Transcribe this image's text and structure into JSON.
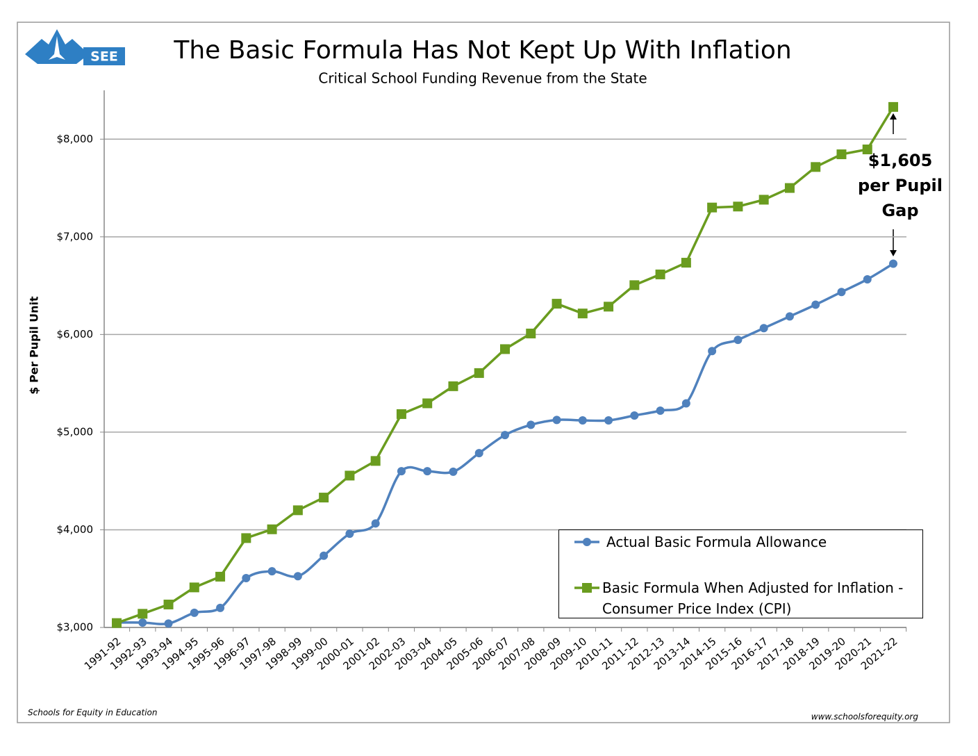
{
  "chart_data": {
    "type": "line",
    "title": "The Basic Formula Has Not Kept Up With Inflation",
    "subtitle": "Critical School Funding Revenue from the State",
    "y_label": "$ Per Pupil Unit",
    "logo_text": "SEE",
    "footer_left": "Schools for Equity in Education",
    "footer_right": "www.schoolsforequity.org",
    "annotation": [
      "$1,605",
      "per Pupil",
      "Gap"
    ],
    "categories": [
      "1991-92",
      "1992-93",
      "1993-94",
      "1994-95",
      "1995-96",
      "1996-97",
      "1997-98",
      "1998-99",
      "1999-00",
      "2000-01",
      "2001-02",
      "2002-03",
      "2003-04",
      "2004-05",
      "2005-06",
      "2006-07",
      "2007-08",
      "2008-09",
      "2009-10",
      "2010-11",
      "2011-12",
      "2012-13",
      "2013-14",
      "2014-15",
      "2015-16",
      "2016-17",
      "2017-18",
      "2018-19",
      "2019-20",
      "2020-21",
      "2021-22"
    ],
    "series": [
      {
        "name": "Actual Basic Formula Allowance",
        "color": "#4f81bd",
        "marker": "circle",
        "smooth": true,
        "values": [
          3050,
          3050,
          3040,
          3150,
          3200,
          3505,
          3575,
          3525,
          3735,
          3960,
          4065,
          4600,
          4600,
          4595,
          4785,
          4970,
          5075,
          5125,
          5120,
          5120,
          5170,
          5220,
          5295,
          5830,
          5945,
          6065,
          6185,
          6305,
          6435,
          6565,
          6725
        ]
      },
      {
        "name": "Basic Formula When Adjusted for Inflation - Consumer Price Index (CPI)",
        "color": "#6a9c1f",
        "marker": "square",
        "smooth": false,
        "values": [
          3045,
          3140,
          3235,
          3410,
          3520,
          3915,
          4005,
          4200,
          4330,
          4555,
          4705,
          5185,
          5295,
          5470,
          5605,
          5850,
          6010,
          6315,
          6215,
          6285,
          6505,
          6615,
          6735,
          7300,
          7310,
          7380,
          7500,
          7715,
          7845,
          7895,
          8330
        ]
      }
    ],
    "ylim": [
      3000,
      8500
    ],
    "yticks": [
      {
        "value": 3000,
        "label": "$3,000"
      },
      {
        "value": 4000,
        "label": "$4,000"
      },
      {
        "value": 5000,
        "label": "$5,000"
      },
      {
        "value": 6000,
        "label": "$6,000"
      },
      {
        "value": 7000,
        "label": "$7,000"
      },
      {
        "value": 8000,
        "label": "$8,000"
      }
    ],
    "grid": true
  }
}
